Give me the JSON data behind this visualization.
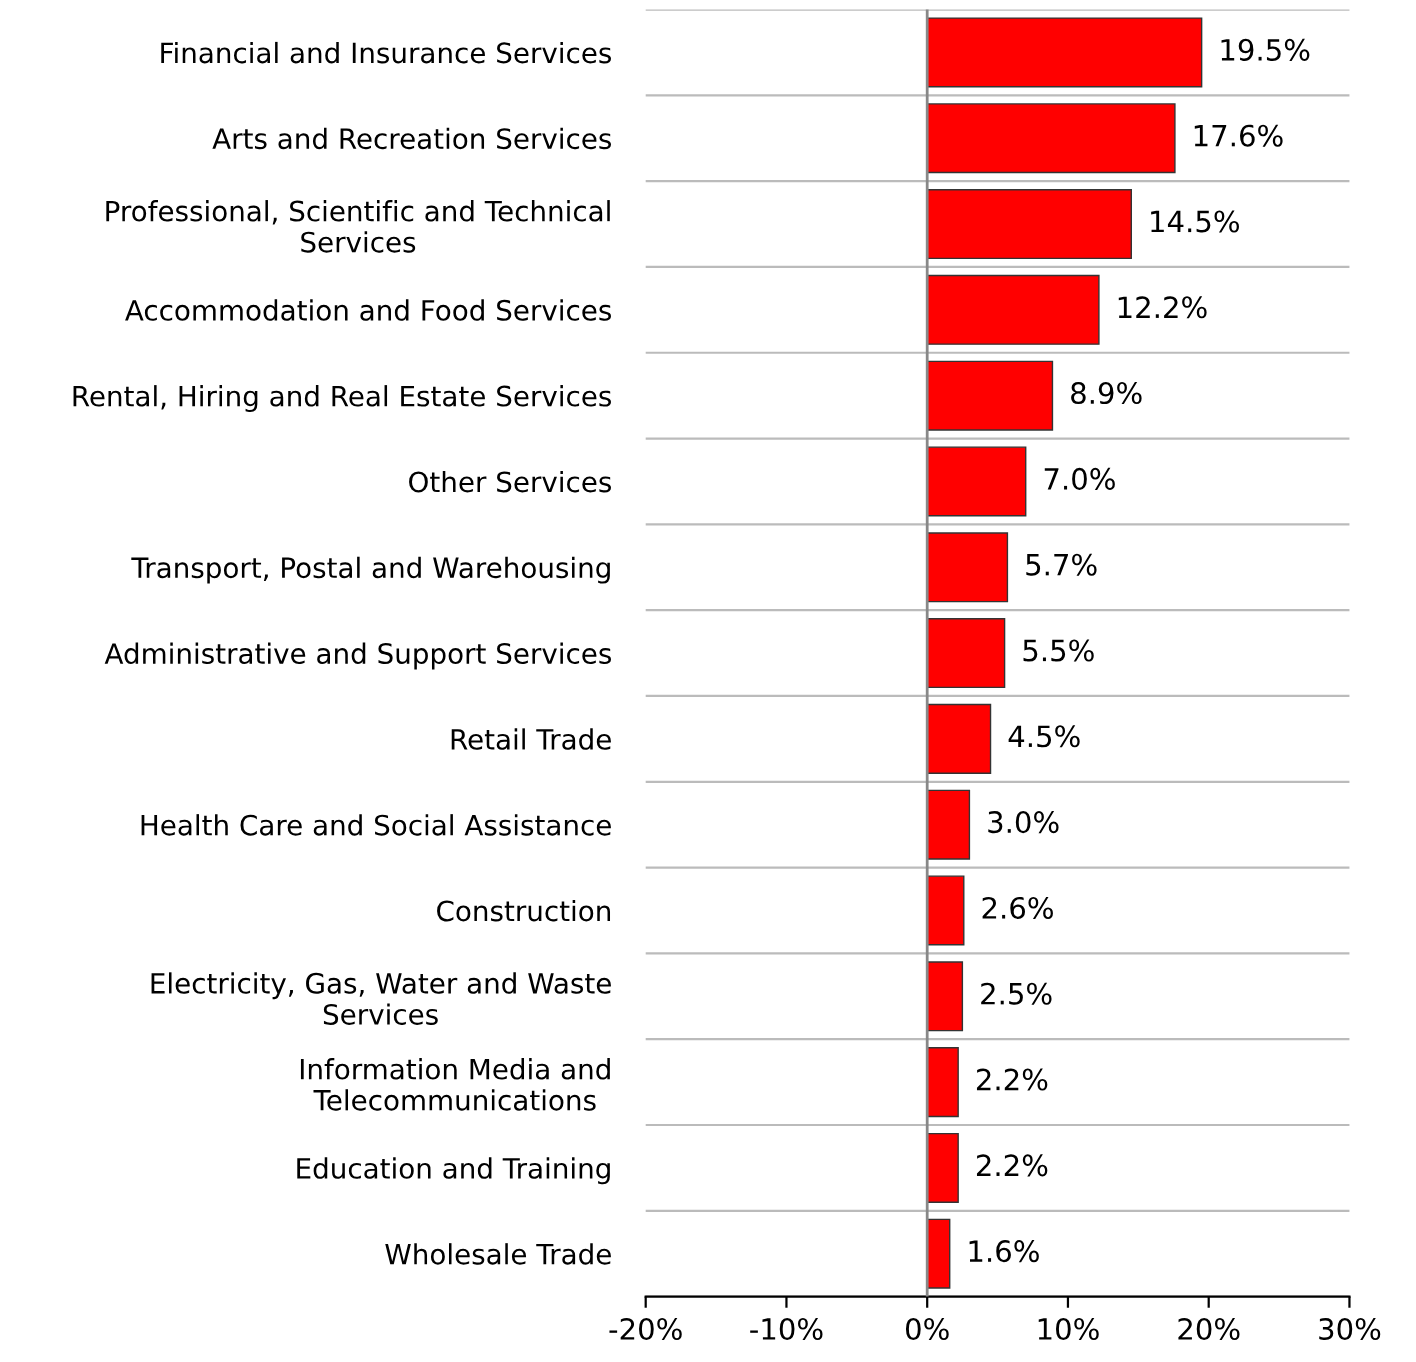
{
  "chart_data": {
    "type": "bar",
    "orientation": "horizontal",
    "categories": [
      "Financial and Insurance Services",
      "Arts and Recreation Services",
      "Professional, Scientific and Technical\nServices",
      "Accommodation and Food Services",
      "Rental, Hiring and Real Estate Services",
      "Other Services",
      "Transport, Postal and Warehousing",
      "Administrative and Support Services",
      "Retail Trade",
      "Health Care and Social Assistance",
      "Construction",
      "Electricity, Gas, Water and Waste\nServices",
      "Information Media and\nTelecommunications",
      "Education and Training",
      "Wholesale Trade"
    ],
    "values": [
      19.5,
      17.6,
      14.5,
      12.2,
      8.9,
      7.0,
      5.7,
      5.5,
      4.5,
      3.0,
      2.6,
      2.5,
      2.2,
      2.2,
      1.6
    ],
    "value_labels": [
      "19.5%",
      "17.6%",
      "14.5%",
      "12.2%",
      "8.9%",
      "7.0%",
      "5.7%",
      "5.5%",
      "4.5%",
      "3.0%",
      "2.6%",
      "2.5%",
      "2.2%",
      "2.2%",
      "1.6%"
    ],
    "color": "#ff0000",
    "xlim": [
      -20,
      30
    ],
    "xticks": [
      {
        "value": -20,
        "label": "-20%"
      },
      {
        "value": -10,
        "label": "-10%"
      },
      {
        "value": 0,
        "label": "0%"
      },
      {
        "value": 10,
        "label": "10%"
      },
      {
        "value": 20,
        "label": "20%"
      },
      {
        "value": 30,
        "label": "30%"
      }
    ],
    "grid": "y"
  }
}
